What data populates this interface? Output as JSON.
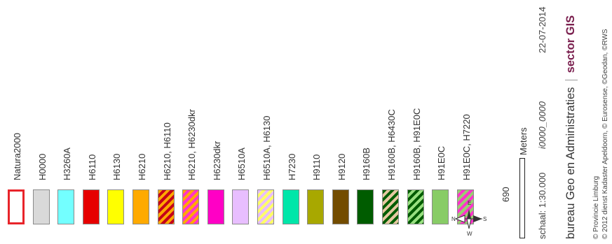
{
  "legend": {
    "items": [
      {
        "code": "Natura2000",
        "fill": "#ffffff",
        "stroke": "#e8242a",
        "style": "outline"
      },
      {
        "code": "H0000",
        "fill": "#d9d9d9",
        "style": "solid"
      },
      {
        "code": "H3260A",
        "fill": "#73ffff",
        "style": "solid"
      },
      {
        "code": "H6110",
        "fill": "#e60000",
        "style": "solid"
      },
      {
        "code": "H6130",
        "fill": "#ffff00",
        "style": "solid"
      },
      {
        "code": "H6210",
        "fill": "#ffaa00",
        "style": "solid"
      },
      {
        "code": "H6210, H6110",
        "fill": "#ffaa00",
        "fill2": "#c4001a",
        "style": "hatch"
      },
      {
        "code": "H6210, H6230dkr",
        "fill": "#ffaa00",
        "fill2": "#ff33cc",
        "style": "hatch"
      },
      {
        "code": "H6230dkr",
        "fill": "#ff00c5",
        "style": "solid"
      },
      {
        "code": "H6510A",
        "fill": "#e8beff",
        "style": "solid"
      },
      {
        "code": "H6510A, H6130",
        "fill": "#e8beff",
        "fill2": "#ffff66",
        "style": "hatch"
      },
      {
        "code": "H7230",
        "fill": "#00e6a9",
        "style": "solid"
      },
      {
        "code": "H9110",
        "fill": "#a8a800",
        "style": "solid"
      },
      {
        "code": "H9120",
        "fill": "#734c00",
        "style": "solid"
      },
      {
        "code": "H9160B",
        "fill": "#005c00",
        "style": "solid"
      },
      {
        "code": "H9160B, H6430C",
        "fill": "#005c00",
        "fill2": "#e6c8a0",
        "style": "hatch"
      },
      {
        "code": "H9160B, H91E0C",
        "fill": "#005c00",
        "fill2": "#98e080",
        "style": "hatch"
      },
      {
        "code": "H91E0C",
        "fill": "#88cc66",
        "style": "solid"
      },
      {
        "code": "H91E0C, H7220",
        "fill": "#98d070",
        "fill2": "#ff33cc",
        "style": "hatch"
      }
    ]
  },
  "compass": {
    "n": "N",
    "e": "E",
    "s": "S",
    "w": "W"
  },
  "scalebar": {
    "value": "690",
    "unit": "Meters"
  },
  "info": {
    "schaal": "schaal:  1:30.000",
    "map_id": "i0000_0000",
    "date": "22-07-2014",
    "bureau": "bureau Geo en Administraties",
    "sector": "sector GIS",
    "sector_color": "#7a1f4e",
    "copyright_1": "© Provincie Limburg",
    "copyright_2": "© 2012 dienst Kadaster Apeldoorn, © Eurosense, ©Geodan, ©RWS"
  }
}
